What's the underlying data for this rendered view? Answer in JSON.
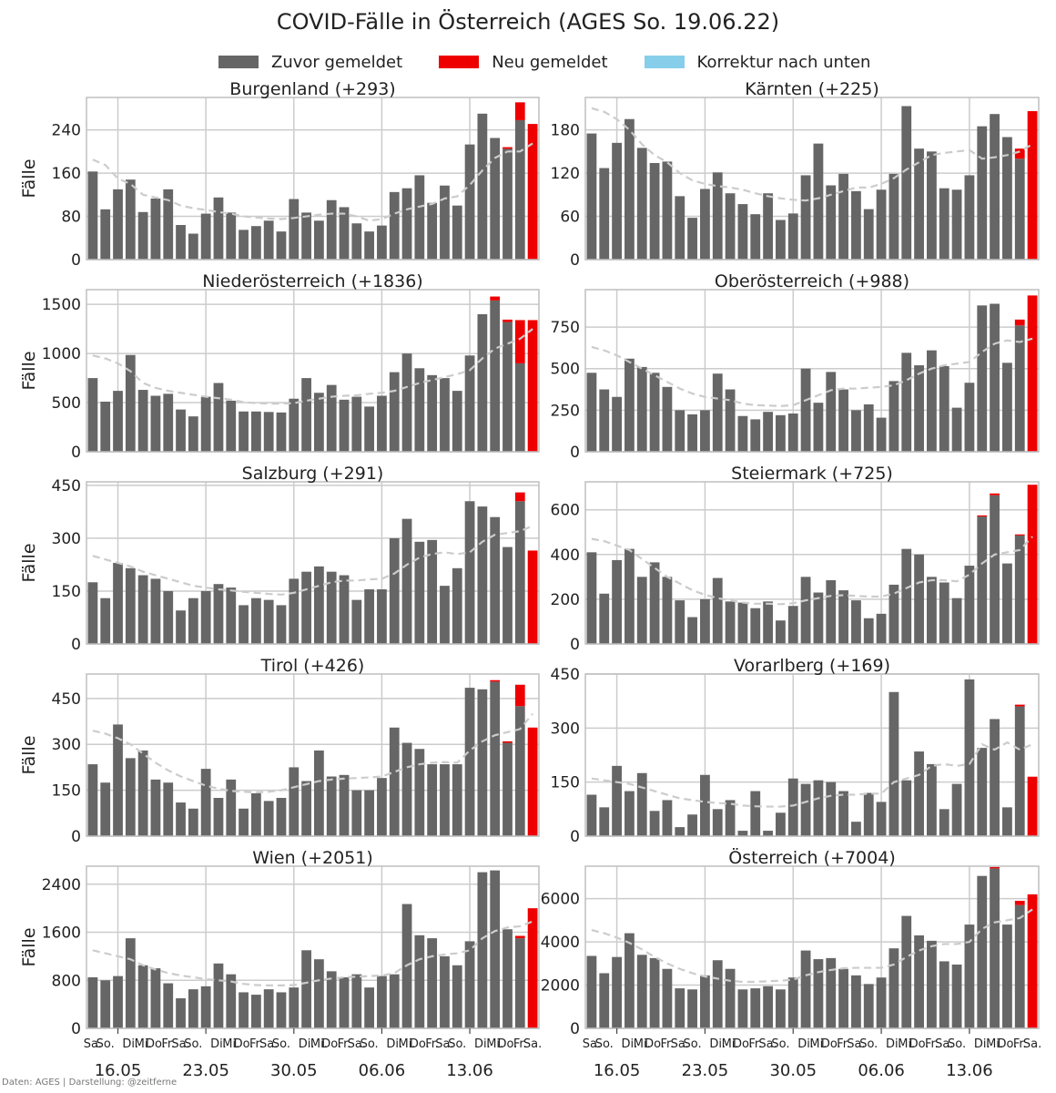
{
  "title": "COVID-Fälle in Österreich (AGES So. 19.06.22)",
  "footer": "Daten: AGES | Darstellung: @zeitferne",
  "legend": [
    {
      "label": "Zuvor gemeldet",
      "color": "#666666"
    },
    {
      "label": "Neu gemeldet",
      "color": "#ee0000"
    },
    {
      "label": "Korrektur nach unten",
      "color": "#87ceeb"
    }
  ],
  "colors": {
    "prev": "#666666",
    "new": "#ee0000",
    "correction": "#87ceeb",
    "avg": "#cccccc",
    "grid": "#cccccc",
    "frame": "#bfbfbf"
  },
  "chart_data": {
    "type": "bar",
    "ylabel": "Fälle",
    "day_tick_labels": [
      "Sa.",
      "So.",
      "",
      "Di.",
      "Mi.",
      "Do.",
      "Fr.",
      "Sa.",
      "So.",
      "",
      "Di.",
      "Mi.",
      "Do.",
      "Fr.",
      "Sa.",
      "So.",
      "",
      "Di.",
      "Mi.",
      "Do.",
      "Fr.",
      "Sa.",
      "So.",
      "",
      "Di.",
      "Mi.",
      "Do.",
      "Fr.",
      "Sa.",
      "So.",
      "",
      "Di.",
      "Mi.",
      "Do.",
      "Fr.",
      "Sa."
    ],
    "week_labels": [
      "16.05",
      "23.05",
      "30.05",
      "06.06",
      "13.06"
    ],
    "week_label_index": [
      2,
      9,
      16,
      23,
      30
    ],
    "panels": [
      {
        "title": "Burgenland (+293)",
        "ylim": [
          0,
          300
        ],
        "yticks": [
          0,
          80,
          160,
          240
        ],
        "prev": [
          163,
          93,
          130,
          148,
          88,
          113,
          130,
          64,
          48,
          85,
          115,
          87,
          55,
          62,
          72,
          52,
          112,
          87,
          72,
          110,
          97,
          67,
          52,
          63,
          125,
          132,
          156,
          105,
          137,
          100,
          213,
          270,
          225,
          205,
          258,
          0
        ],
        "new": [
          0,
          0,
          0,
          0,
          0,
          0,
          0,
          0,
          0,
          0,
          0,
          0,
          0,
          0,
          0,
          0,
          0,
          0,
          0,
          0,
          0,
          0,
          0,
          0,
          0,
          0,
          0,
          0,
          0,
          0,
          0,
          0,
          0,
          3,
          33,
          251
        ],
        "avg": [
          185,
          175,
          150,
          140,
          120,
          115,
          110,
          100,
          95,
          92,
          88,
          85,
          80,
          78,
          76,
          75,
          77,
          80,
          83,
          85,
          85,
          80,
          72,
          75,
          85,
          93,
          98,
          103,
          113,
          117,
          138,
          165,
          188,
          200,
          200,
          215
        ]
      },
      {
        "title": "Kärnten (+225)",
        "ylim": [
          0,
          225
        ],
        "yticks": [
          0,
          60,
          120,
          180
        ],
        "prev": [
          175,
          127,
          162,
          195,
          155,
          134,
          136,
          88,
          58,
          98,
          121,
          92,
          77,
          63,
          92,
          55,
          64,
          117,
          161,
          103,
          119,
          95,
          70,
          97,
          119,
          213,
          154,
          150,
          99,
          97,
          117,
          185,
          202,
          170,
          140,
          0
        ],
        "new": [
          0,
          0,
          0,
          0,
          0,
          0,
          0,
          0,
          0,
          0,
          0,
          0,
          0,
          0,
          0,
          0,
          0,
          0,
          0,
          0,
          0,
          0,
          0,
          0,
          0,
          0,
          0,
          0,
          0,
          0,
          0,
          0,
          0,
          0,
          14,
          206
        ],
        "avg": [
          210,
          205,
          195,
          180,
          160,
          145,
          135,
          120,
          110,
          105,
          102,
          100,
          97,
          92,
          88,
          85,
          83,
          82,
          85,
          90,
          95,
          100,
          100,
          105,
          113,
          125,
          135,
          145,
          148,
          150,
          152,
          140,
          142,
          145,
          150,
          160
        ]
      },
      {
        "title": "Niederösterreich (+1836)",
        "ylim": [
          0,
          1650
        ],
        "yticks": [
          0,
          500,
          1000,
          1500
        ],
        "prev": [
          750,
          510,
          620,
          985,
          630,
          570,
          590,
          430,
          360,
          560,
          700,
          520,
          410,
          410,
          405,
          400,
          540,
          750,
          600,
          680,
          530,
          560,
          460,
          570,
          810,
          1000,
          850,
          780,
          750,
          620,
          980,
          1400,
          1540,
          1320,
          900,
          0
        ],
        "new": [
          0,
          0,
          0,
          0,
          0,
          0,
          0,
          0,
          0,
          0,
          0,
          0,
          0,
          0,
          0,
          0,
          0,
          0,
          0,
          0,
          0,
          0,
          0,
          0,
          0,
          0,
          0,
          0,
          0,
          0,
          0,
          0,
          40,
          25,
          440,
          1340
        ],
        "avg": [
          980,
          950,
          900,
          820,
          700,
          650,
          620,
          600,
          580,
          560,
          545,
          530,
          505,
          495,
          490,
          490,
          495,
          520,
          540,
          560,
          570,
          575,
          590,
          600,
          620,
          660,
          700,
          730,
          760,
          790,
          830,
          950,
          1050,
          1100,
          1150,
          1250
        ]
      },
      {
        "title": "Oberösterreich (+988)",
        "ylim": [
          0,
          975
        ],
        "yticks": [
          0,
          250,
          500,
          750
        ],
        "prev": [
          475,
          375,
          330,
          560,
          510,
          475,
          390,
          250,
          225,
          250,
          470,
          375,
          215,
          195,
          240,
          220,
          230,
          500,
          295,
          480,
          375,
          250,
          285,
          205,
          425,
          595,
          520,
          610,
          515,
          265,
          415,
          880,
          890,
          535,
          760,
          0
        ],
        "new": [
          0,
          0,
          0,
          0,
          0,
          0,
          0,
          0,
          0,
          0,
          0,
          0,
          0,
          0,
          0,
          0,
          0,
          0,
          0,
          0,
          0,
          0,
          0,
          0,
          0,
          0,
          0,
          0,
          0,
          0,
          0,
          0,
          0,
          0,
          35,
          940
        ],
        "avg": [
          630,
          610,
          580,
          540,
          500,
          460,
          420,
          380,
          350,
          330,
          320,
          310,
          290,
          280,
          278,
          275,
          280,
          310,
          340,
          370,
          380,
          380,
          385,
          390,
          400,
          430,
          470,
          500,
          520,
          530,
          540,
          600,
          650,
          670,
          660,
          680
        ]
      },
      {
        "title": "Salzburg (+291)",
        "ylim": [
          0,
          460
        ],
        "yticks": [
          0,
          150,
          300,
          450
        ],
        "prev": [
          175,
          130,
          230,
          215,
          195,
          185,
          150,
          95,
          130,
          150,
          170,
          160,
          110,
          130,
          125,
          110,
          185,
          205,
          220,
          205,
          195,
          125,
          155,
          155,
          300,
          355,
          290,
          295,
          165,
          215,
          405,
          390,
          360,
          275,
          405,
          0
        ],
        "new": [
          0,
          0,
          0,
          0,
          0,
          0,
          0,
          0,
          0,
          0,
          0,
          0,
          0,
          0,
          0,
          0,
          0,
          0,
          0,
          0,
          0,
          0,
          0,
          0,
          0,
          0,
          0,
          0,
          0,
          0,
          0,
          0,
          0,
          0,
          25,
          265
        ],
        "avg": [
          250,
          240,
          230,
          220,
          205,
          195,
          185,
          175,
          165,
          160,
          155,
          152,
          148,
          145,
          142,
          140,
          145,
          155,
          165,
          175,
          180,
          180,
          183,
          185,
          200,
          225,
          245,
          255,
          260,
          255,
          260,
          290,
          310,
          315,
          320,
          335
        ]
      },
      {
        "title": "Steiermark (+725)",
        "ylim": [
          0,
          725
        ],
        "yticks": [
          0,
          200,
          400,
          600
        ],
        "prev": [
          410,
          225,
          375,
          425,
          300,
          365,
          300,
          195,
          120,
          200,
          295,
          190,
          185,
          160,
          190,
          105,
          170,
          300,
          230,
          285,
          240,
          195,
          115,
          135,
          265,
          425,
          400,
          300,
          275,
          205,
          350,
          570,
          665,
          360,
          485,
          0
        ],
        "new": [
          0,
          0,
          0,
          0,
          0,
          0,
          0,
          0,
          0,
          0,
          0,
          0,
          0,
          0,
          0,
          0,
          0,
          0,
          0,
          0,
          0,
          0,
          0,
          0,
          0,
          0,
          0,
          0,
          0,
          0,
          0,
          5,
          8,
          0,
          5,
          712
        ],
        "avg": [
          470,
          460,
          440,
          420,
          380,
          340,
          300,
          270,
          240,
          220,
          205,
          195,
          185,
          180,
          180,
          178,
          182,
          195,
          205,
          215,
          218,
          215,
          212,
          212,
          225,
          250,
          275,
          285,
          285,
          280,
          310,
          360,
          400,
          410,
          420,
          480
        ]
      },
      {
        "title": "Tirol (+426)",
        "ylim": [
          0,
          530
        ],
        "yticks": [
          0,
          150,
          300,
          450
        ],
        "prev": [
          235,
          175,
          365,
          255,
          280,
          185,
          175,
          110,
          90,
          220,
          125,
          185,
          90,
          140,
          115,
          125,
          225,
          180,
          280,
          195,
          200,
          150,
          150,
          190,
          355,
          305,
          285,
          235,
          235,
          235,
          485,
          480,
          505,
          305,
          425,
          0
        ],
        "new": [
          0,
          0,
          0,
          0,
          0,
          0,
          0,
          0,
          0,
          0,
          0,
          0,
          0,
          0,
          0,
          0,
          0,
          0,
          0,
          0,
          0,
          0,
          0,
          0,
          0,
          0,
          0,
          0,
          0,
          0,
          0,
          0,
          5,
          5,
          70,
          355
        ],
        "avg": [
          345,
          335,
          320,
          300,
          270,
          240,
          215,
          195,
          180,
          165,
          155,
          148,
          145,
          143,
          145,
          150,
          160,
          170,
          180,
          185,
          188,
          190,
          192,
          195,
          210,
          225,
          235,
          240,
          242,
          240,
          280,
          310,
          330,
          340,
          350,
          400
        ]
      },
      {
        "title": "Vorarlberg (+169)",
        "ylim": [
          0,
          450
        ],
        "yticks": [
          0,
          150,
          300,
          450
        ],
        "prev": [
          115,
          80,
          195,
          125,
          175,
          70,
          100,
          25,
          60,
          170,
          75,
          100,
          15,
          125,
          15,
          65,
          160,
          145,
          155,
          150,
          125,
          40,
          120,
          95,
          400,
          155,
          235,
          200,
          75,
          145,
          435,
          245,
          325,
          80,
          360,
          0
        ],
        "new": [
          0,
          0,
          0,
          0,
          0,
          0,
          0,
          0,
          0,
          0,
          0,
          0,
          0,
          0,
          0,
          0,
          0,
          0,
          0,
          0,
          0,
          0,
          0,
          0,
          0,
          0,
          0,
          0,
          0,
          0,
          0,
          0,
          0,
          0,
          5,
          165
        ],
        "avg": [
          160,
          155,
          150,
          145,
          135,
          125,
          115,
          105,
          100,
          95,
          92,
          90,
          85,
          83,
          82,
          82,
          85,
          95,
          105,
          112,
          115,
          115,
          118,
          118,
          150,
          160,
          170,
          195,
          200,
          195,
          200,
          255,
          240,
          260,
          240,
          255
        ]
      },
      {
        "title": "Wien (+2051)",
        "ylim": [
          0,
          2700
        ],
        "yticks": [
          0,
          800,
          1600,
          2400
        ],
        "prev": [
          850,
          800,
          870,
          1500,
          1050,
          1000,
          750,
          500,
          650,
          700,
          1080,
          900,
          600,
          560,
          650,
          600,
          680,
          1300,
          1150,
          950,
          850,
          900,
          680,
          870,
          900,
          2070,
          1550,
          1500,
          1200,
          1050,
          1450,
          2600,
          2630,
          1650,
          1500,
          0
        ],
        "new": [
          0,
          0,
          0,
          0,
          0,
          0,
          0,
          0,
          0,
          0,
          0,
          0,
          0,
          0,
          0,
          0,
          0,
          0,
          0,
          0,
          0,
          0,
          0,
          0,
          0,
          0,
          0,
          0,
          0,
          0,
          0,
          0,
          0,
          0,
          40,
          2000
        ],
        "avg": [
          1300,
          1250,
          1200,
          1150,
          1050,
          980,
          920,
          880,
          850,
          820,
          800,
          780,
          740,
          720,
          715,
          715,
          720,
          760,
          800,
          830,
          850,
          860,
          870,
          880,
          920,
          1050,
          1150,
          1200,
          1230,
          1250,
          1300,
          1500,
          1620,
          1680,
          1700,
          1780
        ]
      },
      {
        "title": "Österreich (+7004)",
        "ylim": [
          0,
          7500
        ],
        "yticks": [
          0,
          2000,
          4000,
          6000
        ],
        "prev": [
          3350,
          2550,
          3300,
          4400,
          3400,
          3250,
          2750,
          1850,
          1800,
          2450,
          3150,
          2750,
          1800,
          1850,
          1950,
          1800,
          2350,
          3600,
          3200,
          3250,
          2750,
          2450,
          2050,
          2350,
          3700,
          5200,
          4300,
          4050,
          3100,
          2950,
          4800,
          7050,
          7400,
          4800,
          5700,
          0
        ],
        "new": [
          0,
          0,
          0,
          0,
          0,
          0,
          0,
          0,
          0,
          0,
          0,
          0,
          0,
          0,
          0,
          0,
          0,
          0,
          0,
          0,
          0,
          0,
          0,
          0,
          0,
          0,
          0,
          0,
          0,
          0,
          0,
          0,
          60,
          0,
          200,
          6200
        ],
        "avg": [
          4550,
          4400,
          4200,
          3950,
          3650,
          3300,
          3000,
          2750,
          2550,
          2400,
          2300,
          2200,
          2150,
          2150,
          2180,
          2200,
          2250,
          2450,
          2600,
          2700,
          2780,
          2800,
          2800,
          2800,
          2950,
          3300,
          3600,
          3800,
          3900,
          3900,
          4000,
          4600,
          4900,
          5000,
          5100,
          5500
        ]
      }
    ]
  }
}
